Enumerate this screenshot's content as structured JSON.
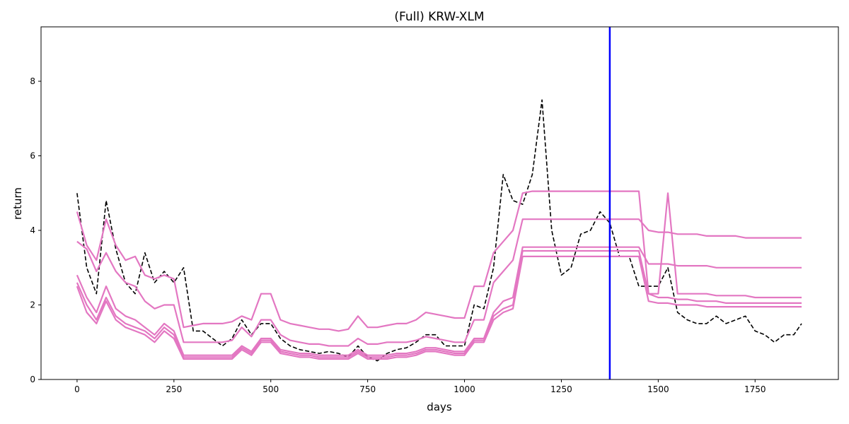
{
  "chart_data": {
    "type": "line",
    "title": "(Full) KRW-XLM",
    "x_label": "days",
    "y_label": "return",
    "x": [
      0,
      25,
      50,
      75,
      100,
      125,
      150,
      175,
      200,
      225,
      250,
      275,
      300,
      325,
      350,
      375,
      400,
      425,
      450,
      475,
      500,
      525,
      550,
      575,
      600,
      625,
      650,
      675,
      700,
      725,
      750,
      775,
      800,
      825,
      850,
      875,
      900,
      925,
      950,
      975,
      1000,
      1025,
      1050,
      1075,
      1100,
      1125,
      1150,
      1175,
      1200,
      1225,
      1250,
      1275,
      1300,
      1325,
      1350,
      1375,
      1400,
      1425,
      1450,
      1475,
      1500,
      1525,
      1550,
      1575,
      1600,
      1625,
      1650,
      1675,
      1700,
      1725,
      1750,
      1775,
      1800,
      1825,
      1850,
      1870
    ],
    "series": [
      {
        "color": "#000000",
        "style": "dashed",
        "values": [
          5.0,
          3.0,
          2.3,
          4.8,
          3.5,
          2.6,
          2.3,
          3.4,
          2.6,
          2.9,
          2.6,
          3.0,
          1.3,
          1.3,
          1.1,
          0.9,
          1.1,
          1.6,
          1.2,
          1.5,
          1.5,
          1.1,
          0.9,
          0.8,
          0.75,
          0.7,
          0.75,
          0.7,
          0.6,
          0.9,
          0.6,
          0.5,
          0.7,
          0.8,
          0.85,
          1.0,
          1.2,
          1.2,
          0.9,
          0.9,
          0.9,
          2.0,
          1.9,
          3.0,
          5.5,
          4.8,
          4.7,
          5.5,
          7.5,
          4.0,
          2.8,
          3.0,
          3.9,
          4.0,
          4.5,
          4.2,
          3.3,
          3.3,
          2.5,
          2.5,
          2.5,
          3.0,
          1.8,
          1.6,
          1.5,
          1.5,
          1.7,
          1.5,
          1.6,
          1.7,
          1.3,
          1.2,
          1.0,
          1.2,
          1.2,
          1.5
        ]
      },
      {
        "color": "#e377c2",
        "style": "solid",
        "values": [
          4.5,
          3.6,
          3.2,
          4.3,
          3.6,
          3.2,
          3.3,
          2.8,
          2.7,
          2.8,
          2.7,
          1.4,
          1.45,
          1.5,
          1.5,
          1.5,
          1.55,
          1.7,
          1.6,
          2.3,
          2.3,
          1.6,
          1.5,
          1.45,
          1.4,
          1.35,
          1.35,
          1.3,
          1.35,
          1.7,
          1.4,
          1.4,
          1.45,
          1.5,
          1.5,
          1.6,
          1.8,
          1.75,
          1.7,
          1.65,
          1.65,
          2.5,
          2.5,
          3.4,
          3.7,
          4.0,
          5.0,
          5.05,
          5.05,
          5.05,
          5.05,
          5.05,
          5.05,
          5.05,
          5.05,
          5.05,
          5.05,
          5.05,
          5.05,
          2.3,
          2.3,
          5.0,
          2.3,
          2.3,
          2.3,
          2.3,
          2.25,
          2.25,
          2.25,
          2.25,
          2.2,
          2.2,
          2.2,
          2.2,
          2.2,
          2.2
        ]
      },
      {
        "color": "#e377c2",
        "style": "solid",
        "values": [
          3.7,
          3.5,
          2.9,
          3.4,
          2.9,
          2.6,
          2.5,
          2.1,
          1.9,
          2.0,
          2.0,
          1.0,
          1.0,
          1.0,
          1.0,
          1.0,
          1.05,
          1.4,
          1.15,
          1.6,
          1.6,
          1.2,
          1.05,
          1.0,
          0.95,
          0.95,
          0.9,
          0.9,
          0.9,
          1.1,
          0.95,
          0.95,
          1.0,
          1.0,
          1.0,
          1.05,
          1.15,
          1.1,
          1.05,
          1.0,
          1.0,
          1.6,
          1.6,
          2.6,
          2.9,
          3.2,
          4.3,
          4.3,
          4.3,
          4.3,
          4.3,
          4.3,
          4.3,
          4.3,
          4.3,
          4.3,
          4.3,
          4.3,
          4.3,
          4.0,
          3.95,
          3.95,
          3.9,
          3.9,
          3.9,
          3.85,
          3.85,
          3.85,
          3.85,
          3.8,
          3.8,
          3.8,
          3.8,
          3.8,
          3.8,
          3.8
        ]
      },
      {
        "color": "#e377c2",
        "style": "solid",
        "values": [
          2.8,
          2.2,
          1.8,
          2.5,
          1.9,
          1.7,
          1.6,
          1.4,
          1.2,
          1.5,
          1.3,
          0.65,
          0.65,
          0.65,
          0.65,
          0.65,
          0.65,
          0.9,
          0.75,
          1.1,
          1.1,
          0.8,
          0.75,
          0.7,
          0.7,
          0.65,
          0.65,
          0.65,
          0.65,
          0.8,
          0.65,
          0.65,
          0.65,
          0.7,
          0.7,
          0.75,
          0.85,
          0.85,
          0.8,
          0.75,
          0.75,
          1.1,
          1.1,
          1.8,
          2.1,
          2.2,
          3.55,
          3.55,
          3.55,
          3.55,
          3.55,
          3.55,
          3.55,
          3.55,
          3.55,
          3.55,
          3.55,
          3.55,
          3.55,
          3.1,
          3.1,
          3.1,
          3.05,
          3.05,
          3.05,
          3.05,
          3.0,
          3.0,
          3.0,
          3.0,
          3.0,
          3.0,
          3.0,
          3.0,
          3.0,
          3.0
        ]
      },
      {
        "color": "#e377c2",
        "style": "solid",
        "values": [
          2.6,
          2.0,
          1.6,
          2.2,
          1.7,
          1.5,
          1.4,
          1.3,
          1.1,
          1.4,
          1.2,
          0.6,
          0.6,
          0.6,
          0.6,
          0.6,
          0.6,
          0.85,
          0.7,
          1.05,
          1.05,
          0.75,
          0.7,
          0.65,
          0.65,
          0.6,
          0.6,
          0.6,
          0.6,
          0.75,
          0.6,
          0.6,
          0.6,
          0.65,
          0.65,
          0.7,
          0.8,
          0.8,
          0.75,
          0.7,
          0.7,
          1.05,
          1.05,
          1.7,
          1.9,
          2.0,
          3.45,
          3.45,
          3.45,
          3.45,
          3.45,
          3.45,
          3.45,
          3.45,
          3.45,
          3.45,
          3.45,
          3.45,
          3.45,
          2.3,
          2.2,
          2.2,
          2.15,
          2.15,
          2.1,
          2.1,
          2.1,
          2.05,
          2.05,
          2.05,
          2.05,
          2.05,
          2.05,
          2.05,
          2.05,
          2.05
        ]
      },
      {
        "color": "#e377c2",
        "style": "solid",
        "values": [
          2.5,
          1.8,
          1.5,
          2.1,
          1.6,
          1.4,
          1.3,
          1.2,
          1.0,
          1.3,
          1.1,
          0.55,
          0.55,
          0.55,
          0.55,
          0.55,
          0.55,
          0.8,
          0.65,
          1.0,
          1.0,
          0.7,
          0.65,
          0.6,
          0.6,
          0.55,
          0.55,
          0.55,
          0.55,
          0.7,
          0.55,
          0.55,
          0.55,
          0.6,
          0.6,
          0.65,
          0.75,
          0.75,
          0.7,
          0.65,
          0.65,
          1.0,
          1.0,
          1.6,
          1.8,
          1.9,
          3.3,
          3.3,
          3.3,
          3.3,
          3.3,
          3.3,
          3.3,
          3.3,
          3.3,
          3.3,
          3.3,
          3.3,
          3.3,
          2.1,
          2.05,
          2.05,
          2.0,
          2.0,
          2.0,
          1.95,
          1.95,
          1.95,
          1.95,
          1.95,
          1.95,
          1.95,
          1.95,
          1.95,
          1.95,
          1.95
        ]
      }
    ],
    "vline": {
      "x": 1375,
      "color": "#0000ff"
    },
    "xlim": [
      -93,
      1965
    ],
    "ylim": [
      0,
      9.46
    ],
    "xticks": [
      0,
      250,
      500,
      750,
      1000,
      1250,
      1500,
      1750
    ],
    "yticks": [
      0,
      2,
      4,
      6,
      8
    ]
  }
}
